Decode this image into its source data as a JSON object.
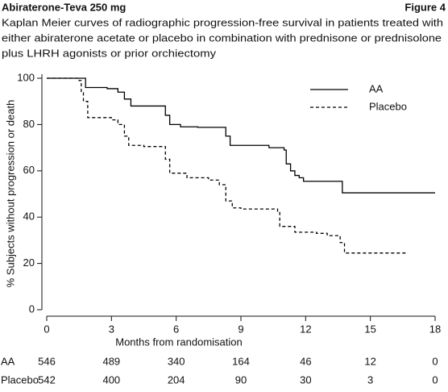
{
  "header": {
    "title": "Abiraterone-Teva 250 mg",
    "figure": "Figure 4",
    "caption": [
      "Kaplan Meier curves of radiographic progression-free survival in patients treated with",
      "either abiraterone acetate or placebo in combination with prednisone or prednisolone",
      "plus LHRH agonists or prior orchiectomy"
    ]
  },
  "chart_data": {
    "type": "step",
    "xlabel": "Months from randomisation",
    "ylabel": "% Subjects without progression or death",
    "xlim": [
      0,
      18
    ],
    "xticks": [
      0,
      3,
      6,
      9,
      12,
      15,
      18
    ],
    "ylim": [
      0,
      100
    ],
    "yticks": [
      0,
      20,
      40,
      60,
      80,
      100
    ],
    "series": [
      {
        "name": "AA",
        "color": "#000000",
        "linestyle": "solid",
        "x": [
          0,
          1.8,
          2.8,
          3.3,
          3.6,
          3.9,
          5.5,
          5.7,
          6.2,
          7,
          8.3,
          8.5,
          10.3,
          11,
          11.1,
          11.3,
          11.5,
          11.7,
          11.9,
          13.7,
          18
        ],
        "values": [
          100,
          96,
          95.5,
          94,
          91,
          88,
          84,
          80,
          79,
          78.8,
          75,
          71,
          70,
          69,
          63,
          60,
          58,
          57,
          55.5,
          50.5,
          50.5
        ]
      },
      {
        "name": "Placebo",
        "color": "#000000",
        "linestyle": "dashed",
        "x": [
          0,
          1.5,
          1.6,
          1.7,
          1.9,
          3,
          3.3,
          3.6,
          3.8,
          4.5,
          5.5,
          5.7,
          6.5,
          7.5,
          8,
          8.3,
          8.6,
          9,
          10.7,
          10.8,
          11.5,
          12.5,
          13,
          13.6,
          13.8,
          16.7
        ],
        "values": [
          100,
          99,
          94,
          90,
          83,
          82,
          80,
          75,
          71,
          70.5,
          65,
          59,
          57,
          56,
          54,
          47,
          44,
          43.5,
          42,
          36,
          33.5,
          33,
          32,
          29,
          24.5,
          24.5
        ]
      }
    ],
    "legend": "upper right",
    "risk_table": [
      {
        "label": "AA",
        "values": [
          546,
          489,
          340,
          164,
          46,
          12,
          0
        ]
      },
      {
        "label": "Placebo",
        "values": [
          542,
          400,
          204,
          90,
          30,
          3,
          0
        ]
      }
    ]
  }
}
